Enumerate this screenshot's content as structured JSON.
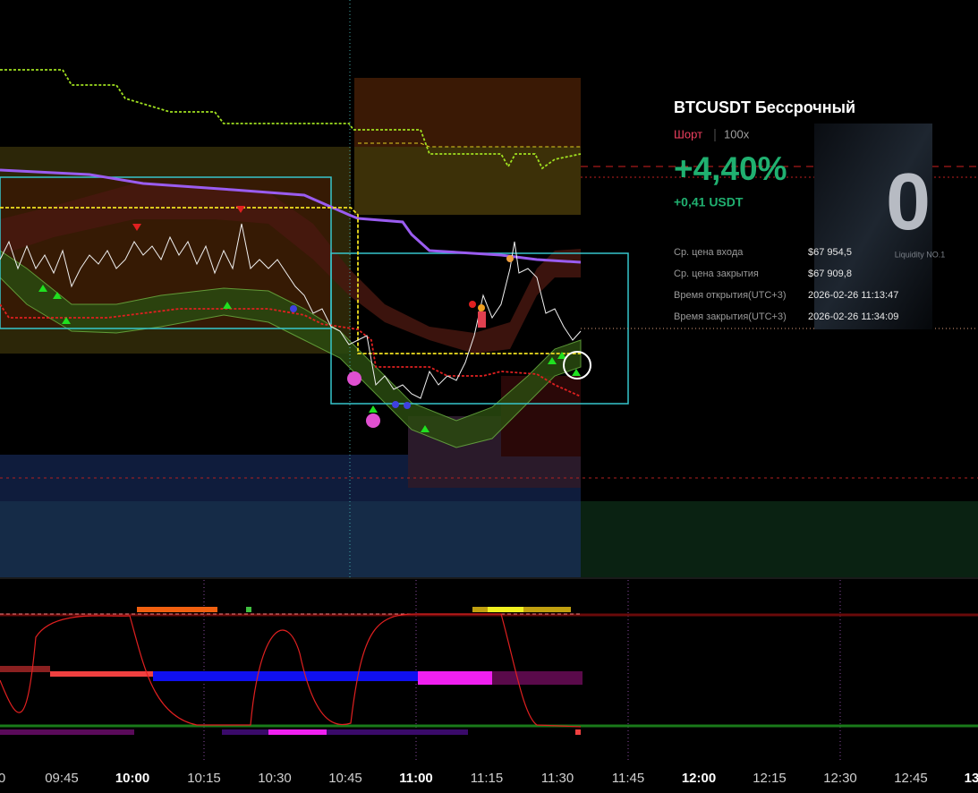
{
  "card": {
    "symbol": "BTCUSDT Бессрочный",
    "side": "Шорт",
    "leverage": "100x",
    "pnl_percent": "+4,40%",
    "pnl_amount": "+0,41 USDT",
    "details": [
      {
        "label": "Ср. цена входа",
        "value": "$67 954,5"
      },
      {
        "label": "Ср. цена закрытия",
        "value": "$67 909,8"
      },
      {
        "label": "Время открытия(UTC+3)",
        "value": "2026-02-26 11:13:47"
      },
      {
        "label": "Время закрытия(UTC+3)",
        "value": "2026-02-26 11:34:09"
      }
    ],
    "watermark": "Liquidity NO.1"
  },
  "time_axis": {
    "labels": [
      "0",
      "09:45",
      "10:00",
      "10:15",
      "10:30",
      "10:45",
      "11:00",
      "11:15",
      "11:30",
      "11:45",
      "12:00",
      "12:15",
      "12:30",
      "12:45",
      "13"
    ]
  }
}
